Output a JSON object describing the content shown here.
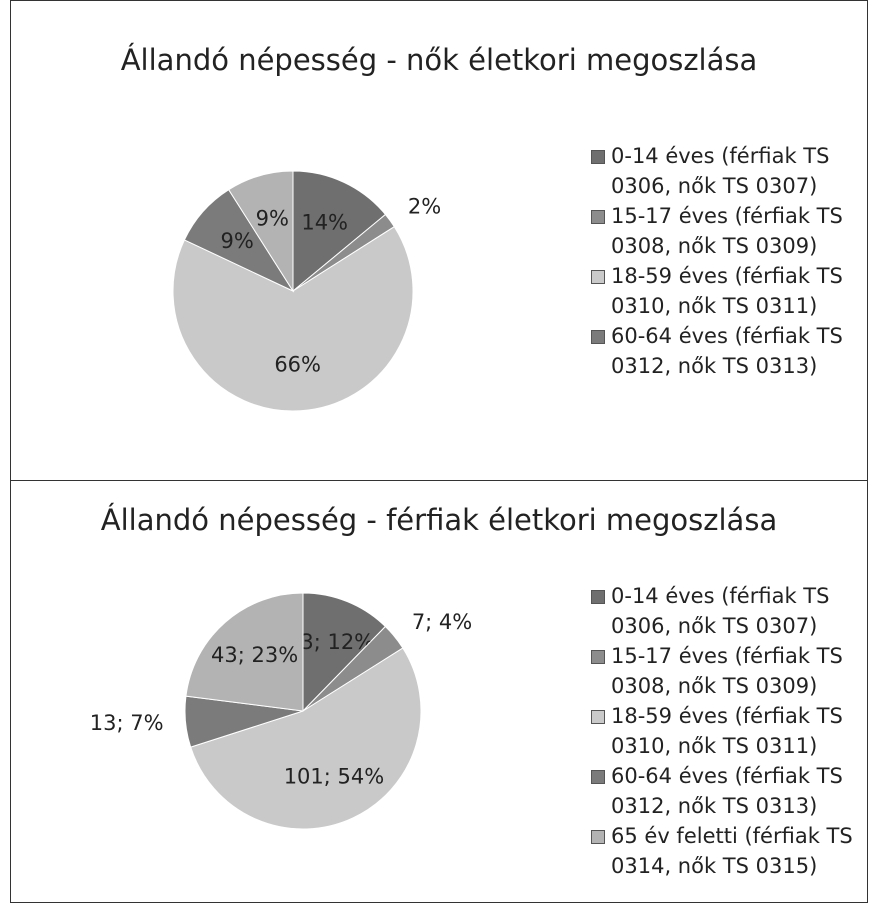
{
  "chart_data": [
    {
      "type": "pie",
      "title": "Állandó népesség - nők életkori megoszlása",
      "categories": [
        "0-14 éves (férfiak TS 0306, nők TS 0307)",
        "15-17 éves (férfiak TS 0308, nők TS 0309)",
        "18-59 éves (férfiak TS 0310, nők TS 0311)",
        "60-64 éves (férfiak TS 0312, nők TS 0313)",
        null
      ],
      "values": [
        14,
        2,
        66,
        9,
        9
      ],
      "value_labels": [
        "14%",
        "2%",
        "66%",
        "9%",
        "9%"
      ],
      "colors": [
        "#6f6f6f",
        "#8c8c8c",
        "#c9c9c9",
        "#7b7b7b",
        "#b3b3b3"
      ],
      "legend": "right"
    },
    {
      "type": "pie",
      "title": "Állandó népesség - férfiak életkori megoszlása",
      "categories": [
        "0-14 éves (férfiak TS 0306, nők TS 0307)",
        "15-17 éves (férfiak TS 0308, nők TS 0309)",
        "18-59 éves (férfiak TS 0310, nők TS 0311)",
        "60-64 éves (férfiak TS 0312, nők TS 0313)",
        "65 év feletti (férfiak TS 0314, nők TS 0315)"
      ],
      "values": [
        23,
        7,
        101,
        13,
        43
      ],
      "value_labels": [
        "23; 12%",
        "7; 4%",
        "101; 54%",
        "13; 7%",
        "43; 23%"
      ],
      "colors": [
        "#6f6f6f",
        "#8c8c8c",
        "#c9c9c9",
        "#7b7b7b",
        "#b3b3b3"
      ],
      "legend": "right"
    }
  ]
}
